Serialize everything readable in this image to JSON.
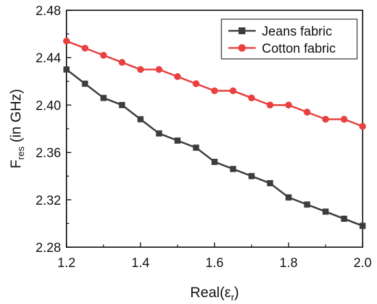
{
  "chart_data": {
    "type": "line",
    "xlabel": "Real(εr)",
    "xlabel_main": "Real(ε",
    "xlabel_sub": "r",
    "xlabel_close": ")",
    "ylabel": "Fres (in GHz)",
    "ylabel_main": "F",
    "ylabel_sub": "res",
    "ylabel_rest": " (in GHz)",
    "xlim": [
      1.2,
      2.0
    ],
    "ylim": [
      2.28,
      2.48
    ],
    "xticks": [
      1.2,
      1.4,
      1.6,
      1.8,
      2.0
    ],
    "xtick_labels": [
      "1.2",
      "1.4",
      "1.6",
      "1.8",
      "2.0"
    ],
    "yticks": [
      2.28,
      2.32,
      2.36,
      2.4,
      2.44,
      2.48
    ],
    "ytick_labels": [
      "2.28",
      "2.32",
      "2.36",
      "2.40",
      "2.44",
      "2.48"
    ],
    "grid": false,
    "legend_position": "top-right",
    "x": [
      1.2,
      1.25,
      1.3,
      1.35,
      1.4,
      1.45,
      1.5,
      1.55,
      1.6,
      1.65,
      1.7,
      1.75,
      1.8,
      1.85,
      1.9,
      1.95,
      2.0
    ],
    "series": [
      {
        "name": "Jeans fabric",
        "color": "#3d3d3d",
        "marker": "square",
        "values": [
          2.43,
          2.418,
          2.406,
          2.4,
          2.388,
          2.376,
          2.37,
          2.364,
          2.352,
          2.346,
          2.34,
          2.334,
          2.322,
          2.316,
          2.31,
          2.304,
          2.298
        ]
      },
      {
        "name": "Cotton fabric",
        "color": "#e8413f",
        "marker": "circle",
        "values": [
          2.454,
          2.448,
          2.442,
          2.436,
          2.43,
          2.43,
          2.424,
          2.418,
          2.412,
          2.412,
          2.406,
          2.4,
          2.4,
          2.394,
          2.388,
          2.388,
          2.382
        ]
      }
    ]
  }
}
